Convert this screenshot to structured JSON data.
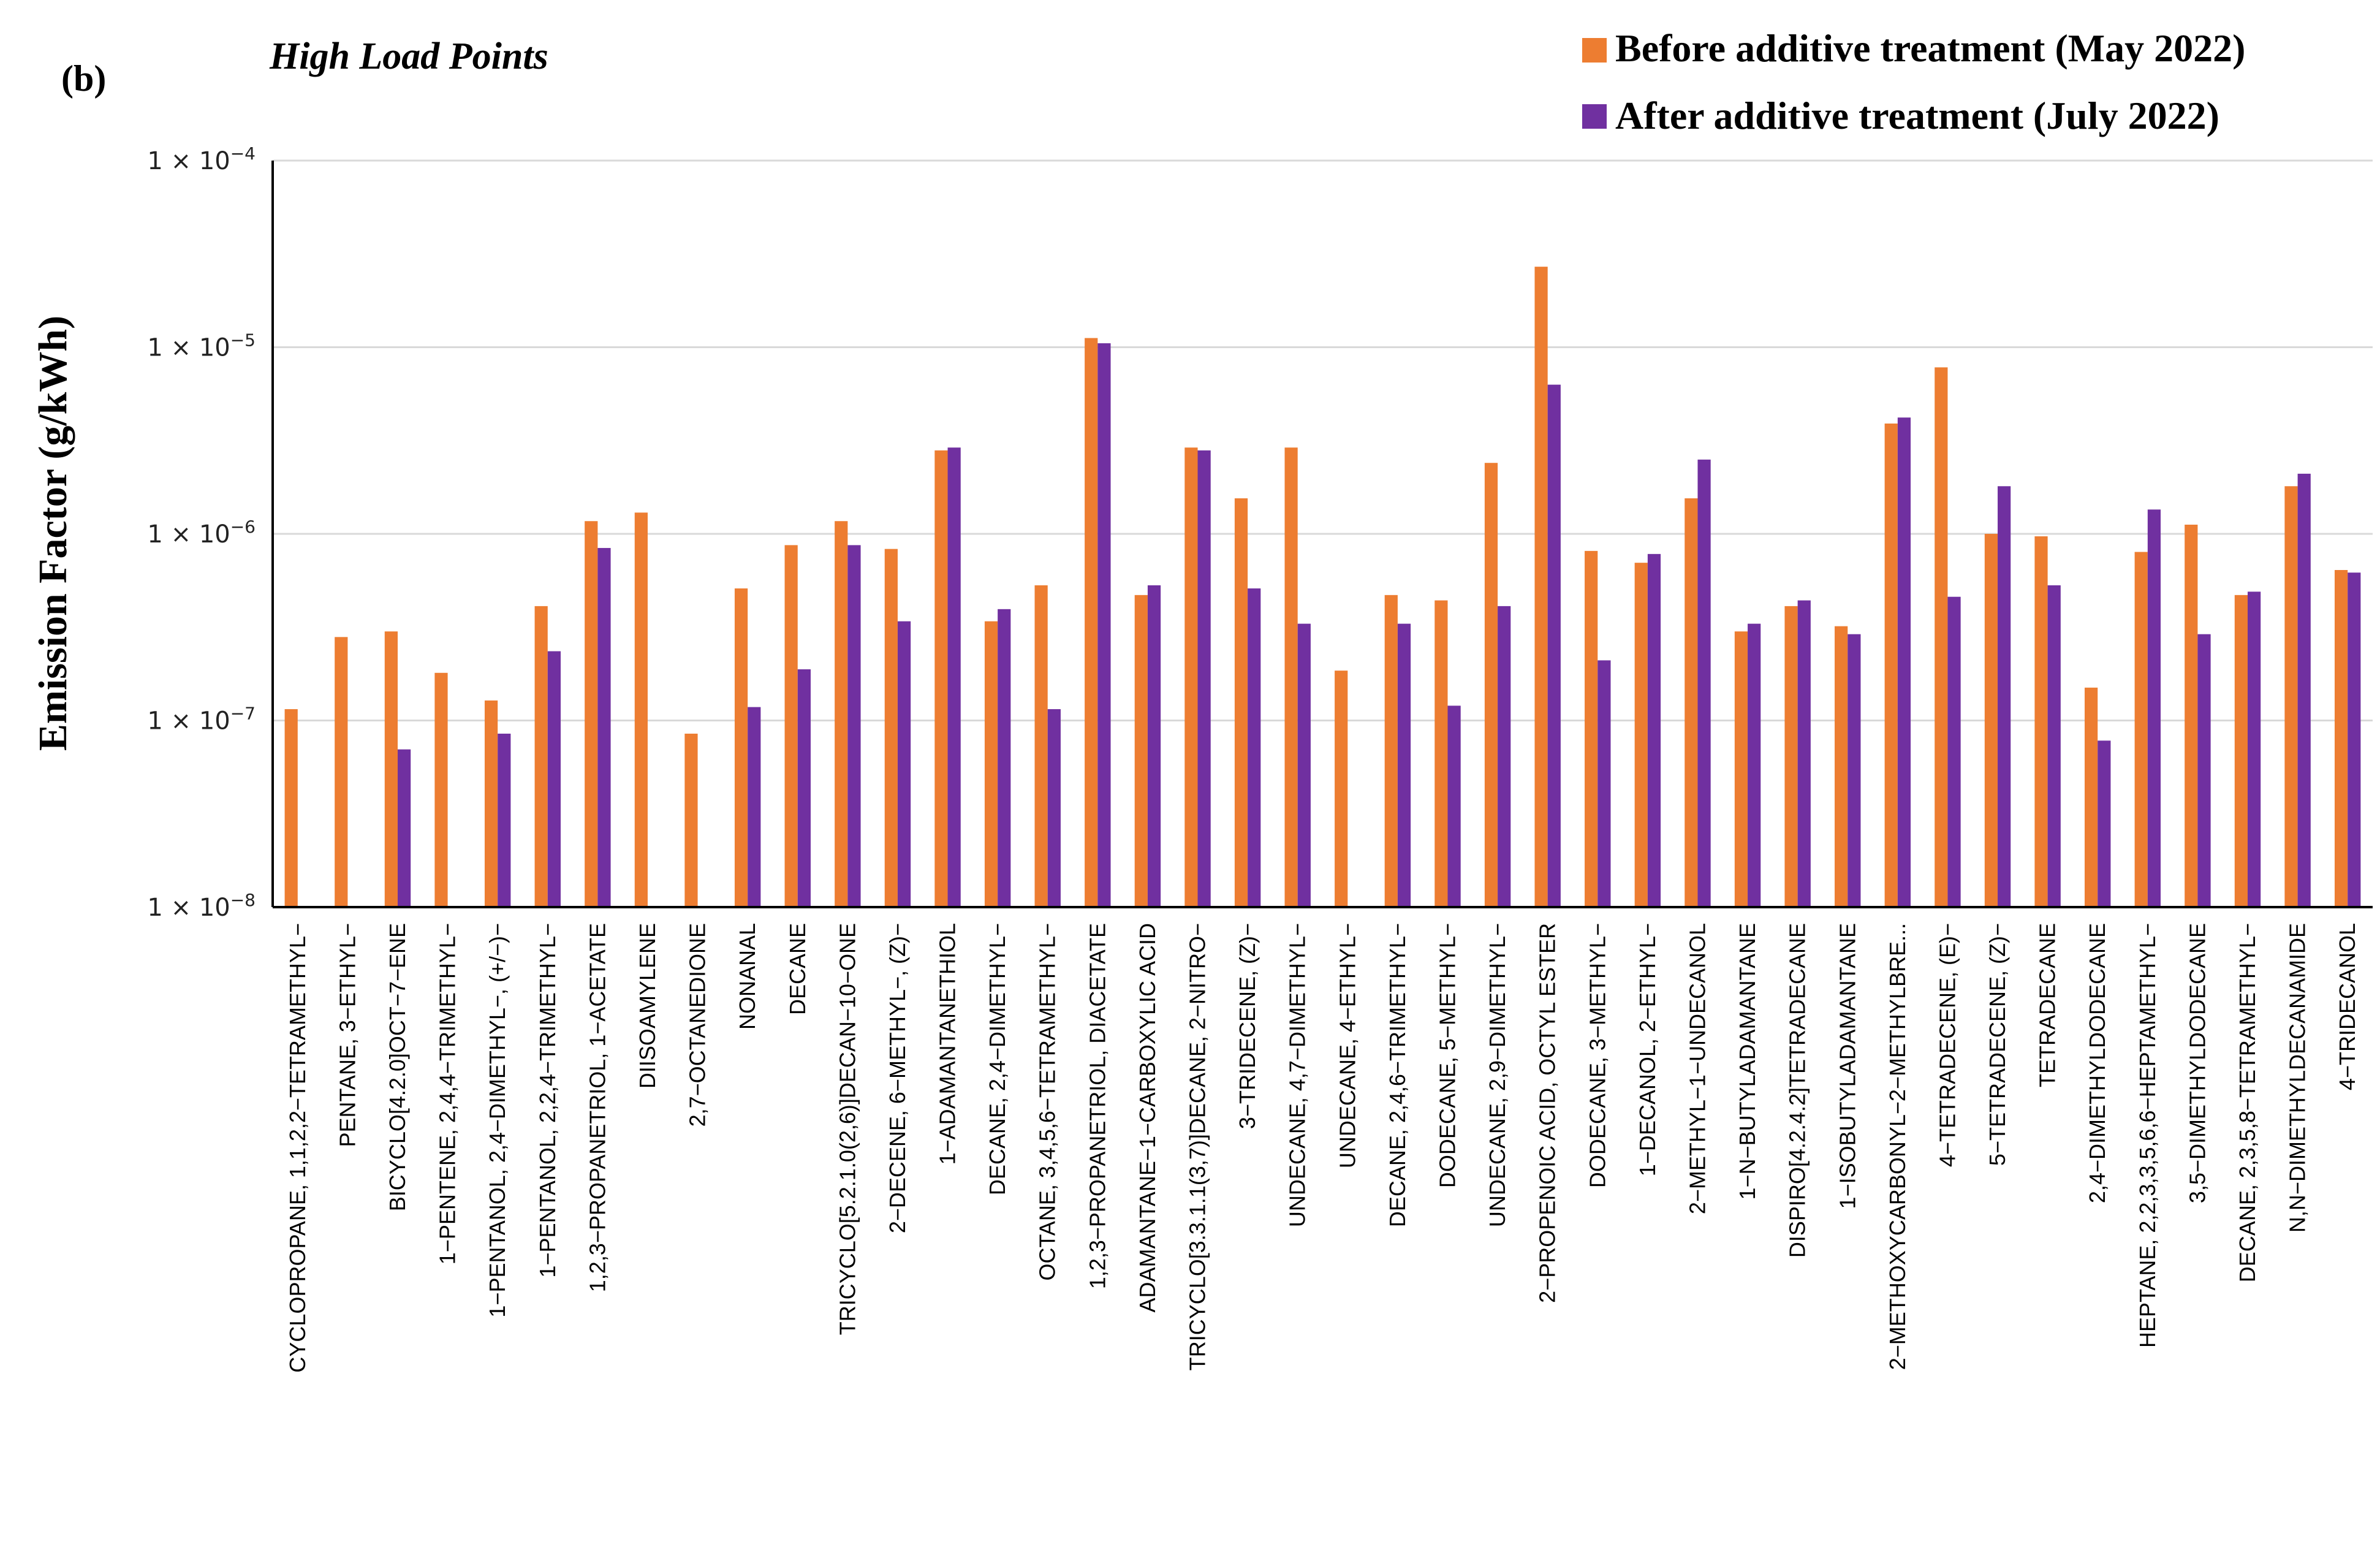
{
  "panel_label": "(b)",
  "colors": {
    "before": "#ED7D31",
    "after": "#7030A0"
  },
  "chart_data": {
    "type": "bar",
    "title": "High Load Points",
    "xlabel": "",
    "ylabel": "Emission Factor (g/kWh)",
    "yscale": "log",
    "ylim": [
      1e-08,
      0.0001
    ],
    "yticks": [
      {
        "value": 0.0001,
        "base": "1 × 10",
        "exp": "−4"
      },
      {
        "value": 1e-05,
        "base": "1 × 10",
        "exp": "−5"
      },
      {
        "value": 1e-06,
        "base": "1 × 10",
        "exp": "−6"
      },
      {
        "value": 1e-07,
        "base": "1 × 10",
        "exp": "−7"
      },
      {
        "value": 1e-08,
        "base": "1 × 10",
        "exp": "−8"
      }
    ],
    "legend_position": "top-right",
    "categories": [
      "CYCLOPROPANE, 1,1,2,2−TETRAMETHYL−",
      "PENTANE, 3−ETHYL−",
      "BICYCLO[4.2.0]OCT−7−ENE",
      "1−PENTENE, 2,4,4−TRIMETHYL−",
      "1−PENTANOL, 2,4−DIMETHYL−, (+/−)−",
      "1−PENTANOL, 2,2,4−TRIMETHYL−",
      "1,2,3−PROPANETRIOL, 1−ACETATE",
      "DIISOAMYLENE",
      "2,7−OCTANEDIONE",
      "NONANAL",
      "DECANE",
      "TRICYCLO[5.2.1.0(2,6)]DECAN−10−ONE",
      "2−DECENE, 6−METHYL−, (Z)−",
      "1−ADAMANTANETHIOL",
      "DECANE, 2,4−DIMETHYL−",
      "OCTANE, 3,4,5,6−TETRAMETHYL−",
      "1,2,3−PROPANETRIOL, DIACETATE",
      "ADAMANTANE−1−CARBOXYLIC ACID",
      "TRICYCLO[3.3.1.1(3,7)]DECANE, 2−NITRO−",
      "3−TRIDECENE, (Z)−",
      "UNDECANE, 4,7−DIMETHYL−",
      "UNDECANE, 4−ETHYL−",
      "DECANE, 2,4,6−TRIMETHYL−",
      "DODECANE, 5−METHYL−",
      "UNDECANE, 2,9−DIMETHYL−",
      "2−PROPENOIC ACID, OCTYL ESTER",
      "DODECANE, 3−METHYL−",
      "1−DECANOL, 2−ETHYL−",
      "2−METHYL−1−UNDECANOL",
      "1−N−BUTYLADAMANTANE",
      "DISPIRO[4.2.4.2]TETRADECANE",
      "1−ISOBUTYLADAMANTANE",
      "2−METHOXYCARBONYL−2−METHYLBRE...",
      "4−TETRADECENE, (E)−",
      "5−TETRADECENE, (Z)−",
      "TETRADECANE",
      "2,4−DIMETHYLDODECANE",
      "HEPTANE, 2,2,3,3,5,6,6−HEPTAMETHYL−",
      "3,5−DIMETHYLDODECANE",
      "DECANE, 2,3,5,8−TETRAMETHYL−",
      "N,N−DIMETHYLDECANAMIDE",
      "4−TRIDECANOL"
    ],
    "series": [
      {
        "name": "Before additive treatment (May 2022)",
        "values": [
          1.15e-07,
          2.8e-07,
          3e-07,
          1.8e-07,
          1.28e-07,
          4.1e-07,
          1.17e-06,
          1.3e-06,
          8.5e-08,
          5.1e-07,
          8.7e-07,
          1.17e-06,
          8.3e-07,
          2.8e-06,
          3.4e-07,
          5.3e-07,
          1.12e-05,
          4.7e-07,
          2.9e-06,
          1.55e-06,
          2.9e-06,
          1.85e-07,
          4.7e-07,
          4.4e-07,
          2.4e-06,
          2.7e-05,
          8.1e-07,
          7e-07,
          1.55e-06,
          3e-07,
          4.1e-07,
          3.2e-07,
          3.9e-06,
          7.8e-06,
          1e-06,
          9.7e-07,
          1.5e-07,
          8e-07,
          1.12e-06,
          4.7e-07,
          1.8e-06,
          6.4e-07
        ]
      },
      {
        "name": "After additive treatment (July 2022)",
        "values": [
          null,
          null,
          7e-08,
          null,
          8.5e-08,
          2.35e-07,
          8.4e-07,
          null,
          null,
          1.18e-07,
          1.88e-07,
          8.7e-07,
          3.4e-07,
          2.9e-06,
          3.95e-07,
          1.15e-07,
          1.05e-05,
          5.3e-07,
          2.8e-06,
          5.1e-07,
          3.3e-07,
          null,
          3.3e-07,
          1.2e-07,
          4.1e-07,
          6.3e-06,
          2.1e-07,
          7.8e-07,
          2.5e-06,
          3.3e-07,
          4.4e-07,
          2.9e-07,
          4.2e-06,
          4.6e-07,
          1.8e-06,
          5.3e-07,
          7.8e-08,
          1.35e-06,
          2.9e-07,
          4.9e-07,
          2.1e-06,
          6.2e-07
        ]
      }
    ]
  }
}
